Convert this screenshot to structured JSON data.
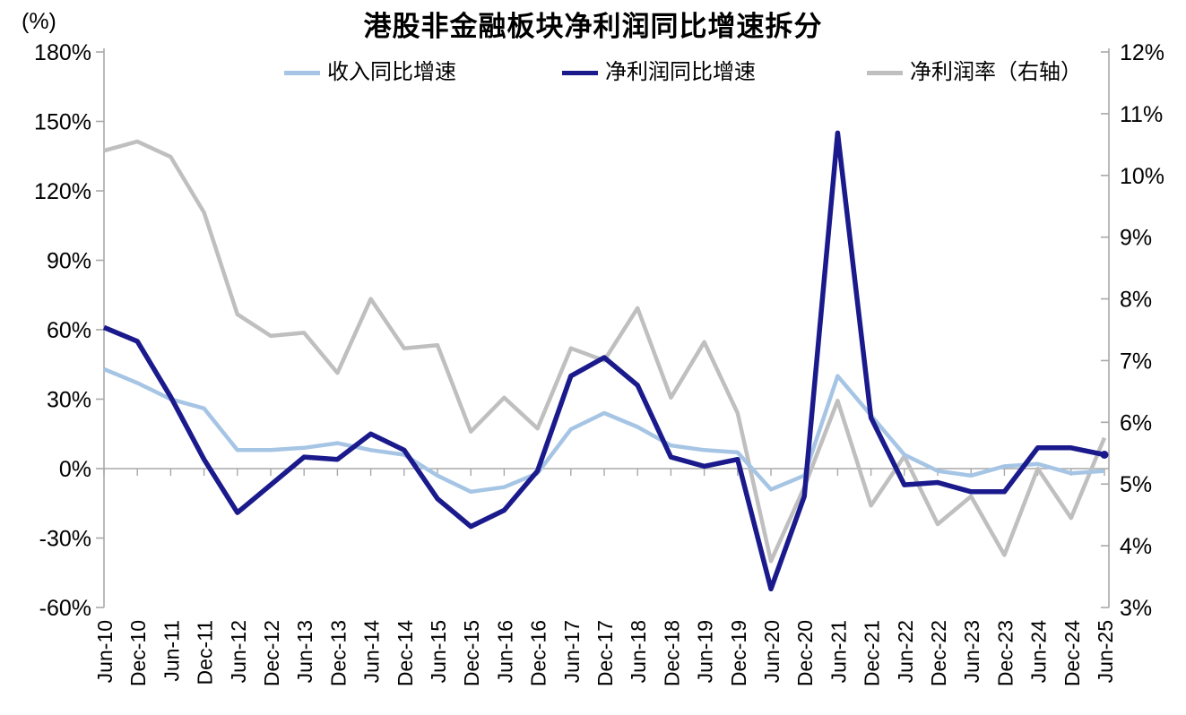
{
  "title": "港股非金融板块净利润同比增速拆分",
  "unit_label": "(%)",
  "chart_data": {
    "type": "line",
    "title": "港股非金融板块净利润同比增速拆分",
    "left_axis_unit": "(%)",
    "legend_position": "top",
    "grid": "zero-line-only",
    "categories": [
      "Jun-10",
      "Dec-10",
      "Jun-11",
      "Dec-11",
      "Jun-12",
      "Dec-12",
      "Jun-13",
      "Dec-13",
      "Jun-14",
      "Dec-14",
      "Jun-15",
      "Dec-15",
      "Jun-16",
      "Dec-16",
      "Jun-17",
      "Dec-17",
      "Jun-18",
      "Dec-18",
      "Jun-19",
      "Dec-19",
      "Jun-20",
      "Dec-20",
      "Jun-21",
      "Dec-21",
      "Jun-22",
      "Dec-22",
      "Jun-23",
      "Dec-23",
      "Jun-24",
      "Dec-24",
      "Jun-25"
    ],
    "series": [
      {
        "name": "收入同比增速",
        "axis": "left",
        "color": "#a6c5e5",
        "values": [
          43,
          37,
          30,
          26,
          8,
          8,
          9,
          11,
          8,
          6,
          -3,
          -10,
          -8,
          -2,
          17,
          24,
          18,
          10,
          8,
          7,
          -9,
          -3,
          40,
          23,
          6,
          -1,
          -3,
          1,
          2,
          -2,
          -1
        ]
      },
      {
        "name": "净利润同比增速",
        "axis": "left",
        "color": "#1a1a8c",
        "values": [
          61,
          55,
          31,
          4,
          -19,
          -7,
          5,
          4,
          15,
          8,
          -13,
          -25,
          -18,
          -1,
          40,
          48,
          36,
          5,
          1,
          4,
          -52,
          -12,
          145,
          22,
          -7,
          -6,
          -10,
          -10,
          9,
          9,
          6
        ]
      },
      {
        "name": "净利润率（右轴）",
        "axis": "right",
        "color": "#bfbfbf",
        "values": [
          10.4,
          10.55,
          10.3,
          9.4,
          7.75,
          7.4,
          7.45,
          6.8,
          8.0,
          7.2,
          7.25,
          5.85,
          6.4,
          5.9,
          7.2,
          7.0,
          7.85,
          6.4,
          7.3,
          6.15,
          3.75,
          4.95,
          6.35,
          4.65,
          5.45,
          4.35,
          4.8,
          3.85,
          5.25,
          4.45,
          5.75
        ]
      }
    ],
    "left_axis": {
      "min": -60,
      "max": 180,
      "step": 30,
      "ticks": [
        180,
        150,
        120,
        90,
        60,
        30,
        0,
        -30,
        -60
      ],
      "tick_labels": [
        "180%",
        "150%",
        "120%",
        "90%",
        "60%",
        "30%",
        "0%",
        "-30%",
        "-60%"
      ]
    },
    "right_axis": {
      "min": 3,
      "max": 12,
      "step": 1,
      "ticks": [
        12,
        11,
        10,
        9,
        8,
        7,
        6,
        5,
        4,
        3
      ],
      "tick_labels": [
        "12%",
        "11%",
        "10%",
        "9%",
        "8%",
        "7%",
        "6%",
        "5%",
        "4%",
        "3%"
      ]
    }
  }
}
